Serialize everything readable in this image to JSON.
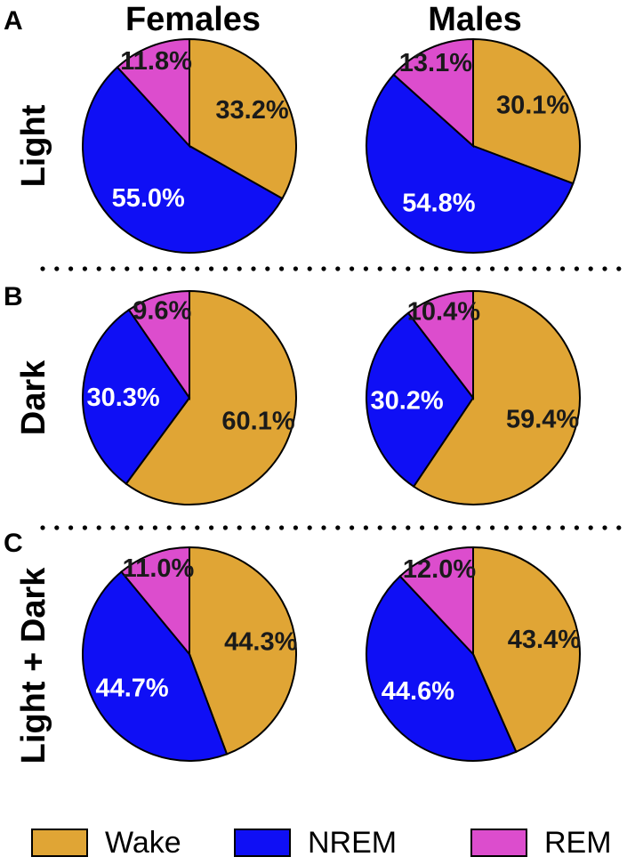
{
  "colors": {
    "Wake": "#e0a535",
    "NREM": "#0f0ff5",
    "REM": "#dc4dcd"
  },
  "chart_data": {
    "type": "pie",
    "columns": [
      "Females",
      "Males"
    ],
    "legend": [
      "Wake",
      "NREM",
      "REM"
    ],
    "panels": [
      {
        "letter": "A",
        "row_label": "Light",
        "charts": [
          {
            "group": "Females",
            "slices": [
              {
                "label": "Wake",
                "value": 33.2,
                "text": "33.2%"
              },
              {
                "label": "NREM",
                "value": 55.0,
                "text": "55.0%"
              },
              {
                "label": "REM",
                "value": 11.8,
                "text": "11.8%"
              }
            ]
          },
          {
            "group": "Males",
            "slices": [
              {
                "label": "Wake",
                "value": 30.1,
                "text": "30.1%"
              },
              {
                "label": "NREM",
                "value": 54.8,
                "text": "54.8%"
              },
              {
                "label": "REM",
                "value": 13.1,
                "text": "13.1%"
              }
            ]
          }
        ]
      },
      {
        "letter": "B",
        "row_label": "Dark",
        "charts": [
          {
            "group": "Females",
            "slices": [
              {
                "label": "Wake",
                "value": 60.1,
                "text": "60.1%"
              },
              {
                "label": "NREM",
                "value": 30.3,
                "text": "30.3%"
              },
              {
                "label": "REM",
                "value": 9.6,
                "text": "9.6%"
              }
            ]
          },
          {
            "group": "Males",
            "slices": [
              {
                "label": "Wake",
                "value": 59.4,
                "text": "59.4%"
              },
              {
                "label": "NREM",
                "value": 30.2,
                "text": "30.2%"
              },
              {
                "label": "REM",
                "value": 10.4,
                "text": "10.4%"
              }
            ]
          }
        ]
      },
      {
        "letter": "C",
        "row_label": "Light + Dark",
        "charts": [
          {
            "group": "Females",
            "slices": [
              {
                "label": "Wake",
                "value": 44.3,
                "text": "44.3%"
              },
              {
                "label": "NREM",
                "value": 44.7,
                "text": "44.7%"
              },
              {
                "label": "REM",
                "value": 11.0,
                "text": "11.0%"
              }
            ]
          },
          {
            "group": "Males",
            "slices": [
              {
                "label": "Wake",
                "value": 43.4,
                "text": "43.4%"
              },
              {
                "label": "NREM",
                "value": 44.6,
                "text": "44.6%"
              },
              {
                "label": "REM",
                "value": 12.0,
                "text": "12.0%"
              }
            ]
          }
        ]
      }
    ]
  }
}
